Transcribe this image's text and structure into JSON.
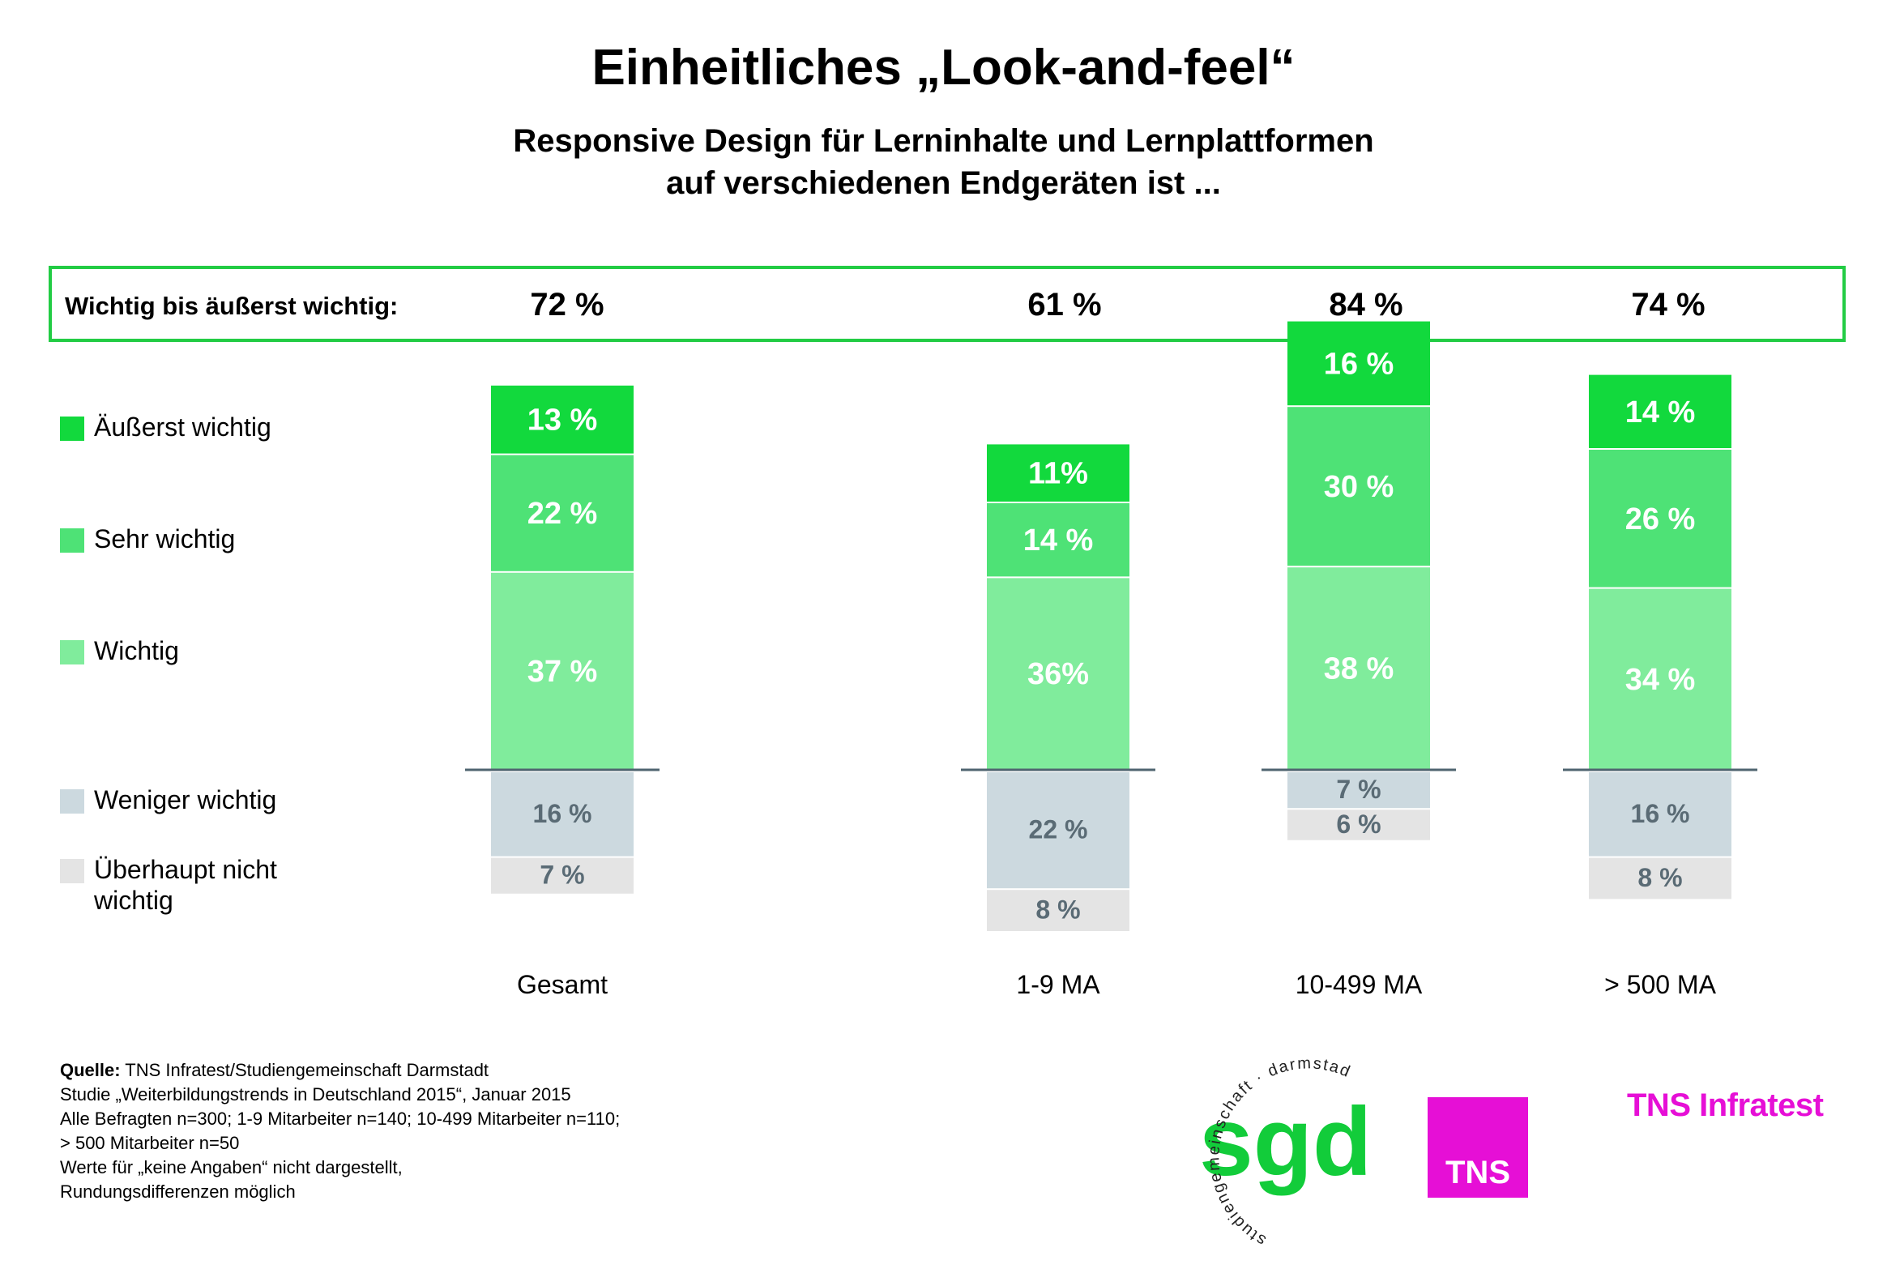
{
  "title": "Einheitliches „Look-and-feel“",
  "subtitle_line1": "Responsive Design für Lerninhalte und Lernplattformen",
  "subtitle_line2": "auf verschiedenen Endgeräten ist ...",
  "summary": {
    "label": "Wichtig bis äußerst wichtig:",
    "values": [
      "72 %",
      "61 %",
      "84 %",
      "74 %"
    ]
  },
  "legend": [
    {
      "label": "Äußerst wichtig",
      "color": "#12d93d"
    },
    {
      "label": "Sehr wichtig",
      "color": "#4ee276"
    },
    {
      "label": "Wichtig",
      "color": "#80ec9c"
    },
    {
      "label": "Weniger wichtig",
      "color": "#ccd9df"
    },
    {
      "label_line1": "Überhaupt nicht",
      "label_line2": "wichtig",
      "color": "#e4e4e4"
    }
  ],
  "chart_data": {
    "type": "bar",
    "stacked": true,
    "diverging": true,
    "categories": [
      "Gesamt",
      "1-9 MA",
      "10-499 MA",
      "> 500 MA"
    ],
    "series": [
      {
        "name": "Äußerst wichtig",
        "values": [
          13,
          11,
          16,
          14
        ],
        "labels": [
          "13 %",
          "11%",
          "16 %",
          "14 %"
        ],
        "color": "#12d93d"
      },
      {
        "name": "Sehr wichtig",
        "values": [
          22,
          14,
          30,
          26
        ],
        "labels": [
          "22 %",
          "14 %",
          "30 %",
          "26 %"
        ],
        "color": "#4ee276"
      },
      {
        "name": "Wichtig",
        "values": [
          37,
          36,
          38,
          34
        ],
        "labels": [
          "37 %",
          "36%",
          "38 %",
          "34 %"
        ],
        "color": "#80ec9c"
      },
      {
        "name": "Weniger wichtig",
        "values": [
          16,
          22,
          7,
          16
        ],
        "labels": [
          "16 %",
          "22 %",
          "7 %",
          "16 %"
        ],
        "color": "#ccd9df"
      },
      {
        "name": "Überhaupt nicht wichtig",
        "values": [
          7,
          8,
          6,
          8
        ],
        "labels": [
          "7 %",
          "8 %",
          "6 %",
          "8 %"
        ],
        "color": "#e4e4e4"
      }
    ],
    "positive_series": [
      "Äußerst wichtig",
      "Sehr wichtig",
      "Wichtig"
    ],
    "negative_series": [
      "Weniger wichtig",
      "Überhaupt nicht wichtig"
    ]
  },
  "footer": {
    "source_label": "Quelle:",
    "source_text": " TNS Infratest/Studiengemeinschaft Darmstadt",
    "lines": [
      "Studie „Weiterbildungstrends in Deutschland 2015“, Januar 2015",
      "Alle Befragten n=300; 1-9 Mitarbeiter n=140; 10-499 Mitarbeiter n=110;",
      "> 500 Mitarbeiter n=50",
      "Werte für „keine Angaben“ nicht dargestellt,",
      "Rundungsdifferenzen möglich"
    ]
  },
  "logos": {
    "sgd_text": "sgd",
    "sgd_ring_text": "studiengemeinschaft · darmstadt",
    "tns_box_text": "TNS",
    "tns_text": "TNS Infratest"
  }
}
